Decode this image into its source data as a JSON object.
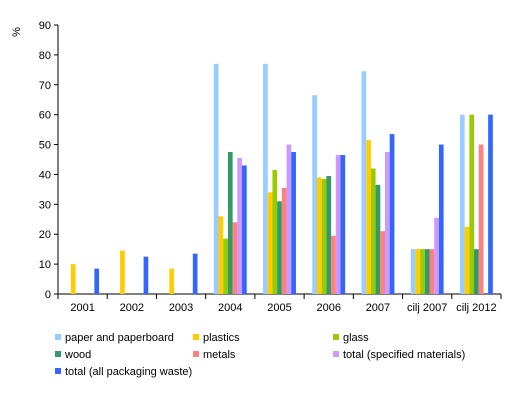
{
  "chart_data": {
    "type": "bar",
    "title": "",
    "xlabel": "",
    "ylabel": "%",
    "ylim": [
      0,
      90
    ],
    "yticks": [
      0,
      10,
      20,
      30,
      40,
      50,
      60,
      70,
      80,
      90
    ],
    "grid": false,
    "legend_position": "bottom",
    "categories": [
      "2001",
      "2002",
      "2003",
      "2004",
      "2005",
      "2006",
      "2007",
      "cilj 2007",
      "cilj 2012"
    ],
    "series": [
      {
        "name": "paper and paperboard",
        "color": "#99ccff",
        "values": [
          null,
          null,
          null,
          77,
          77,
          66.5,
          74.5,
          15,
          60
        ]
      },
      {
        "name": "plastics",
        "color": "#ffcc00",
        "values": [
          10,
          14.5,
          8.5,
          26,
          34,
          39,
          51.5,
          15,
          22.5
        ]
      },
      {
        "name": "glass",
        "color": "#99cc00",
        "values": [
          null,
          null,
          null,
          18.5,
          41.5,
          38.5,
          42,
          15,
          60
        ]
      },
      {
        "name": "wood",
        "color": "#339966",
        "values": [
          null,
          null,
          null,
          47.5,
          31,
          39.5,
          36.5,
          15,
          15
        ]
      },
      {
        "name": "metals",
        "color": "#ff8080",
        "values": [
          null,
          null,
          null,
          24,
          35.5,
          19.5,
          21,
          15,
          50
        ]
      },
      {
        "name": "total (specified materials)",
        "color": "#cc99ff",
        "values": [
          null,
          null,
          null,
          45.5,
          50,
          46.5,
          47.5,
          25.5,
          null
        ]
      },
      {
        "name": "total (all packaging waste)",
        "color": "#3366ff",
        "values": [
          8.5,
          12.5,
          13.5,
          43,
          47.5,
          46.5,
          53.5,
          50,
          60
        ]
      }
    ]
  }
}
